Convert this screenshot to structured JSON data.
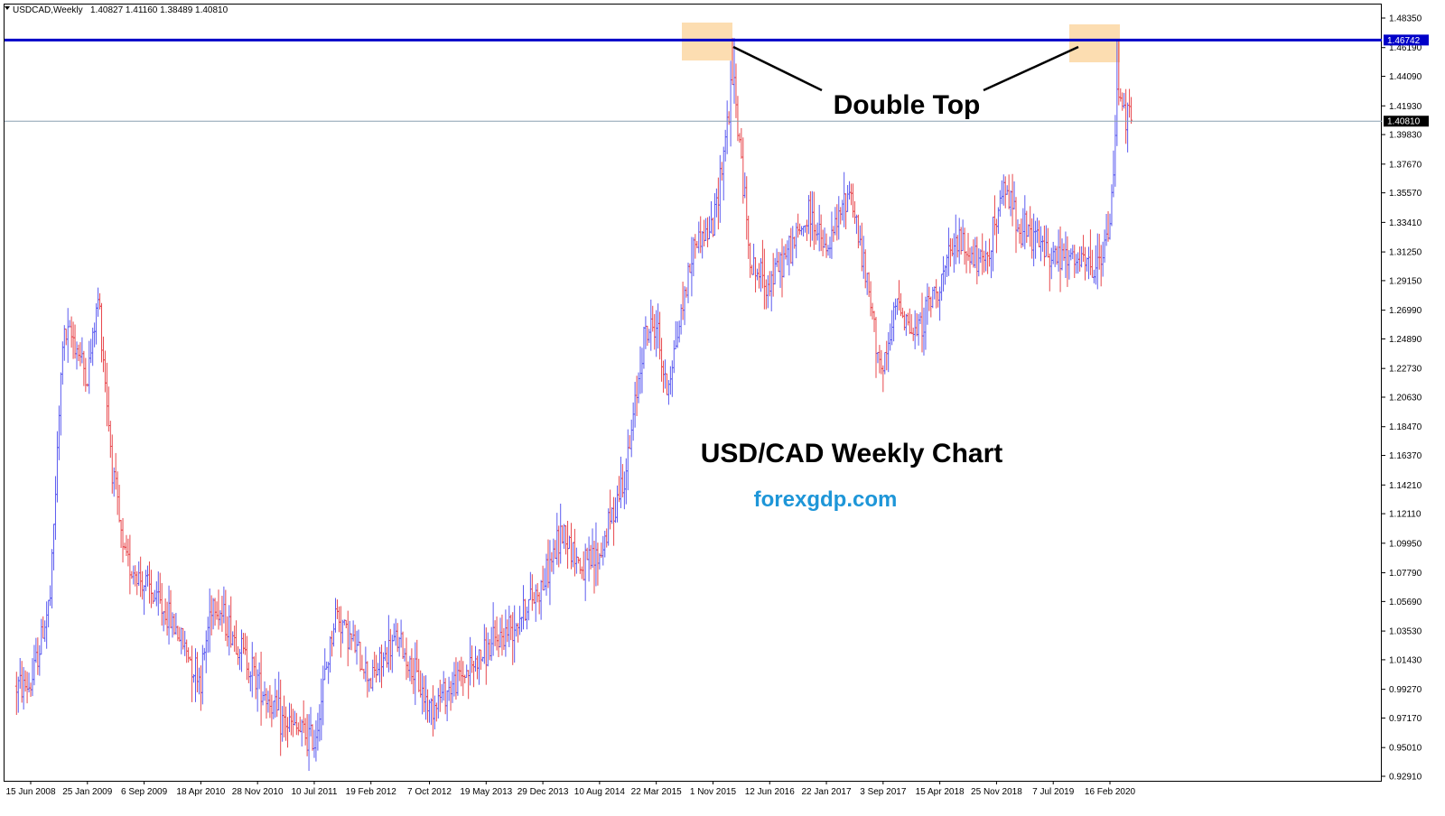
{
  "header": {
    "symbol": "USDCAD,Weekly",
    "ohlc": "1.40827 1.41160 1.38489 1.40810"
  },
  "annotations": {
    "pattern_label": "Double Top",
    "chart_title": "USD/CAD Weekly Chart",
    "website": "forexgdp.com"
  },
  "colors": {
    "bull": "#5b5bf0",
    "bear": "#e8484d",
    "resistance": "#0000c8",
    "current_line": "#8aa0b0",
    "highlight": "#fcd9a8",
    "website": "#1e96d8",
    "text": "#000000"
  },
  "chart_data": {
    "type": "ohlc",
    "symbol": "USDCAD",
    "timeframe": "Weekly",
    "last": {
      "open": 1.40827,
      "high": 1.4116,
      "low": 1.38489,
      "close": 1.4081
    },
    "ylim": [
      0.9291,
      1.4835
    ],
    "y_ticks": [
      "1.48350",
      "1.46190",
      "1.44090",
      "1.41930",
      "1.39830",
      "1.37670",
      "1.35570",
      "1.33410",
      "1.31250",
      "1.29150",
      "1.26990",
      "1.24890",
      "1.22730",
      "1.20630",
      "1.18470",
      "1.16370",
      "1.14210",
      "1.12110",
      "1.09950",
      "1.07790",
      "1.05690",
      "1.03530",
      "1.01430",
      "0.99270",
      "0.97170",
      "0.95010",
      "0.92910"
    ],
    "x_ticks": [
      "15 Jun 2008",
      "25 Jan 2009",
      "6 Sep 2009",
      "18 Apr 2010",
      "28 Nov 2010",
      "10 Jul 2011",
      "19 Feb 2012",
      "7 Oct 2012",
      "19 May 2013",
      "29 Dec 2013",
      "10 Aug 2014",
      "22 Mar 2015",
      "1 Nov 2015",
      "12 Jun 2016",
      "22 Jan 2017",
      "3 Sep 2017",
      "15 Apr 2018",
      "25 Nov 2018",
      "7 Jul 2019",
      "16 Feb 2020"
    ],
    "resistance_level": 1.46742,
    "resistance_label": "1.46742",
    "current_price": 1.4081,
    "current_label": "1.40810",
    "path_points": [
      [
        "2008-06-15",
        0.995
      ],
      [
        "2008-09-01",
        1.06
      ],
      [
        "2008-10-20",
        1.25
      ],
      [
        "2008-12-01",
        1.25
      ],
      [
        "2009-01-25",
        1.22
      ],
      [
        "2009-03-10",
        1.28
      ],
      [
        "2009-05-01",
        1.16
      ],
      [
        "2009-06-15",
        1.09
      ],
      [
        "2009-09-06",
        1.07
      ],
      [
        "2010-01-01",
        1.04
      ],
      [
        "2010-04-18",
        1.0
      ],
      [
        "2010-06-01",
        1.06
      ],
      [
        "2010-09-01",
        1.03
      ],
      [
        "2010-11-28",
        1.0
      ],
      [
        "2011-03-01",
        0.97
      ],
      [
        "2011-07-10",
        0.955
      ],
      [
        "2011-10-04",
        1.05
      ],
      [
        "2012-02-19",
        1.0
      ],
      [
        "2012-06-01",
        1.03
      ],
      [
        "2012-10-07",
        0.98
      ],
      [
        "2013-01-01",
        0.995
      ],
      [
        "2013-05-19",
        1.02
      ],
      [
        "2013-09-01",
        1.04
      ],
      [
        "2013-12-29",
        1.07
      ],
      [
        "2014-03-20",
        1.11
      ],
      [
        "2014-06-01",
        1.08
      ],
      [
        "2014-08-10",
        1.09
      ],
      [
        "2014-12-01",
        1.16
      ],
      [
        "2015-01-30",
        1.25
      ],
      [
        "2015-03-22",
        1.26
      ],
      [
        "2015-05-01",
        1.21
      ],
      [
        "2015-08-20",
        1.32
      ],
      [
        "2015-11-01",
        1.33
      ],
      [
        "2016-01-20",
        1.44
      ],
      [
        "2016-04-01",
        1.3
      ],
      [
        "2016-06-12",
        1.29
      ],
      [
        "2016-11-20",
        1.34
      ],
      [
        "2017-01-22",
        1.31
      ],
      [
        "2017-04-25",
        1.36
      ],
      [
        "2017-09-03",
        1.22
      ],
      [
        "2017-11-01",
        1.28
      ],
      [
        "2018-01-01",
        1.25
      ],
      [
        "2018-04-15",
        1.29
      ],
      [
        "2018-06-25",
        1.32
      ],
      [
        "2018-10-01",
        1.3
      ],
      [
        "2018-12-31",
        1.36
      ],
      [
        "2019-03-01",
        1.33
      ],
      [
        "2019-07-07",
        1.31
      ],
      [
        "2019-12-30",
        1.3
      ],
      [
        "2020-02-16",
        1.33
      ],
      [
        "2020-03-19",
        1.44
      ],
      [
        "2020-04-20",
        1.41
      ],
      [
        "2020-06-01",
        1.405
      ]
    ]
  }
}
